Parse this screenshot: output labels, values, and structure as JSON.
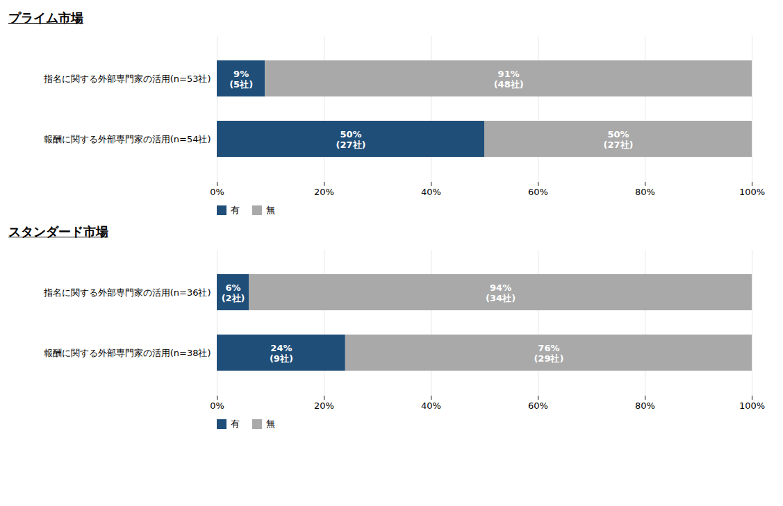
{
  "chart_data": [
    {
      "type": "bar",
      "orientation": "horizontal",
      "stacked": true,
      "data_labels": true,
      "grid": true,
      "legend": "lower left",
      "title": "プライム市場",
      "categories": [
        "指名に関する外部専門家の活用(n=53社)",
        "報酬に関する外部専門家の活用(n=54社)"
      ],
      "series": [
        {
          "name": "有",
          "color": "#1F4E79",
          "values": [
            9,
            50
          ],
          "value_labels": [
            "9%\n(5社)",
            "50%\n(27社)"
          ]
        },
        {
          "name": "無",
          "color": "#A9A9A9",
          "values": [
            91,
            50
          ],
          "value_labels": [
            "91%\n(48社)",
            "50%\n(27社)"
          ]
        }
      ],
      "xlim": [
        0,
        100
      ],
      "xticks": [
        {
          "value": 0,
          "label": "0%"
        },
        {
          "value": 20,
          "label": "20%"
        },
        {
          "value": 40,
          "label": "40%"
        },
        {
          "value": 60,
          "label": "60%"
        },
        {
          "value": 80,
          "label": "80%"
        },
        {
          "value": 100,
          "label": "100%"
        }
      ]
    },
    {
      "type": "bar",
      "orientation": "horizontal",
      "stacked": true,
      "data_labels": true,
      "grid": true,
      "legend": "lower left",
      "title": "スタンダード市場",
      "categories": [
        "指名に関する外部専門家の活用(n=36社)",
        "報酬に関する外部専門家の活用(n=38社)"
      ],
      "series": [
        {
          "name": "有",
          "color": "#1F4E79",
          "values": [
            6,
            24
          ],
          "value_labels": [
            "6%\n(2社)",
            "24%\n(9社)"
          ]
        },
        {
          "name": "無",
          "color": "#A9A9A9",
          "values": [
            94,
            76
          ],
          "value_labels": [
            "94%\n(34社)",
            "76%\n(29社)"
          ]
        }
      ],
      "xlim": [
        0,
        100
      ],
      "xticks": [
        {
          "value": 0,
          "label": "0%"
        },
        {
          "value": 20,
          "label": "20%"
        },
        {
          "value": 40,
          "label": "40%"
        },
        {
          "value": 60,
          "label": "60%"
        },
        {
          "value": 80,
          "label": "80%"
        },
        {
          "value": 100,
          "label": "100%"
        }
      ]
    }
  ]
}
